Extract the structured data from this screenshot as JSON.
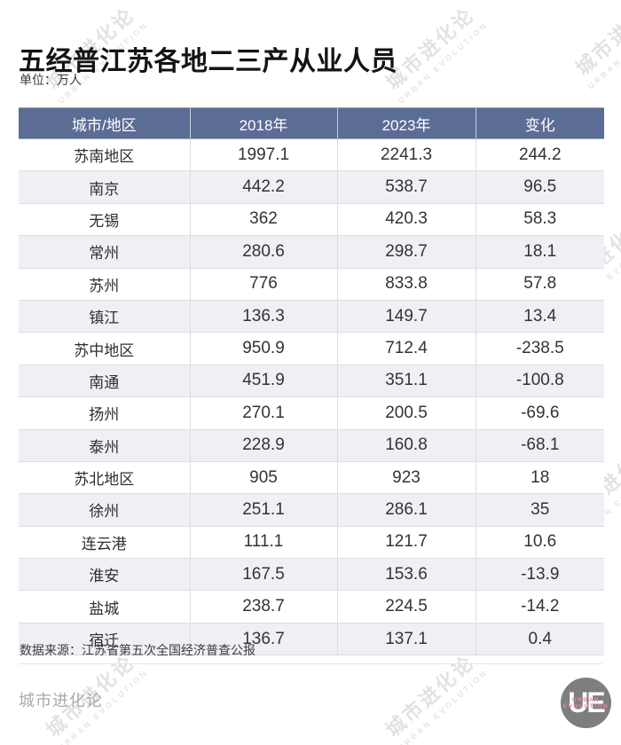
{
  "header": {
    "title": "五经普江苏各地二三产从业人员",
    "unit": "单位：万人"
  },
  "table": {
    "columns": [
      "城市/地区",
      "2018年",
      "2023年",
      "变化"
    ],
    "rows": [
      [
        "苏南地区",
        "1997.1",
        "2241.3",
        "244.2"
      ],
      [
        "南京",
        "442.2",
        "538.7",
        "96.5"
      ],
      [
        "无锡",
        "362",
        "420.3",
        "58.3"
      ],
      [
        "常州",
        "280.6",
        "298.7",
        "18.1"
      ],
      [
        "苏州",
        "776",
        "833.8",
        "57.8"
      ],
      [
        "镇江",
        "136.3",
        "149.7",
        "13.4"
      ],
      [
        "苏中地区",
        "950.9",
        "712.4",
        "-238.5"
      ],
      [
        "南通",
        "451.9",
        "351.1",
        "-100.8"
      ],
      [
        "扬州",
        "270.1",
        "200.5",
        "-69.6"
      ],
      [
        "泰州",
        "228.9",
        "160.8",
        "-68.1"
      ],
      [
        "苏北地区",
        "905",
        "923",
        "18"
      ],
      [
        "徐州",
        "251.1",
        "286.1",
        "35"
      ],
      [
        "连云港",
        "111.1",
        "121.7",
        "10.6"
      ],
      [
        "淮安",
        "167.5",
        "153.6",
        "-13.9"
      ],
      [
        "盐城",
        "238.7",
        "224.5",
        "-14.2"
      ],
      [
        "宿迁",
        "136.7",
        "137.1",
        "0.4"
      ]
    ]
  },
  "footer": {
    "source": "数据来源：江苏省第五次全国经济普查公报",
    "brand": "城市进化论"
  },
  "logo": {
    "monogram": "UE",
    "line1": "URBAN",
    "line2": "EVOLUTION"
  },
  "watermark": {
    "cn": "城市进化论",
    "en": "URBAN EVOLUTION"
  },
  "colors": {
    "header_bg": "#5B6C95",
    "alt_row": "#EFF0F4",
    "grid_line": "#DDDEE3",
    "logo_circle": "#7E7E7E",
    "logo_accent": "#F2889C"
  },
  "chart_data": {
    "type": "table",
    "title": "五经普江苏各地二三产从业人员",
    "unit": "万人",
    "columns": [
      "城市/地区",
      "2018年",
      "2023年",
      "变化"
    ],
    "rows": [
      [
        "苏南地区",
        1997.1,
        2241.3,
        244.2
      ],
      [
        "南京",
        442.2,
        538.7,
        96.5
      ],
      [
        "无锡",
        362,
        420.3,
        58.3
      ],
      [
        "常州",
        280.6,
        298.7,
        18.1
      ],
      [
        "苏州",
        776,
        833.8,
        57.8
      ],
      [
        "镇江",
        136.3,
        149.7,
        13.4
      ],
      [
        "苏中地区",
        950.9,
        712.4,
        -238.5
      ],
      [
        "南通",
        451.9,
        351.1,
        -100.8
      ],
      [
        "扬州",
        270.1,
        200.5,
        -69.6
      ],
      [
        "泰州",
        228.9,
        160.8,
        -68.1
      ],
      [
        "苏北地区",
        905,
        923,
        18
      ],
      [
        "徐州",
        251.1,
        286.1,
        35
      ],
      [
        "连云港",
        111.1,
        121.7,
        10.6
      ],
      [
        "淮安",
        167.5,
        153.6,
        -13.9
      ],
      [
        "盐城",
        238.7,
        224.5,
        -14.2
      ],
      [
        "宿迁",
        136.7,
        137.1,
        0.4
      ]
    ],
    "source": "数据来源：江苏省第五次全国经济普查公报"
  }
}
